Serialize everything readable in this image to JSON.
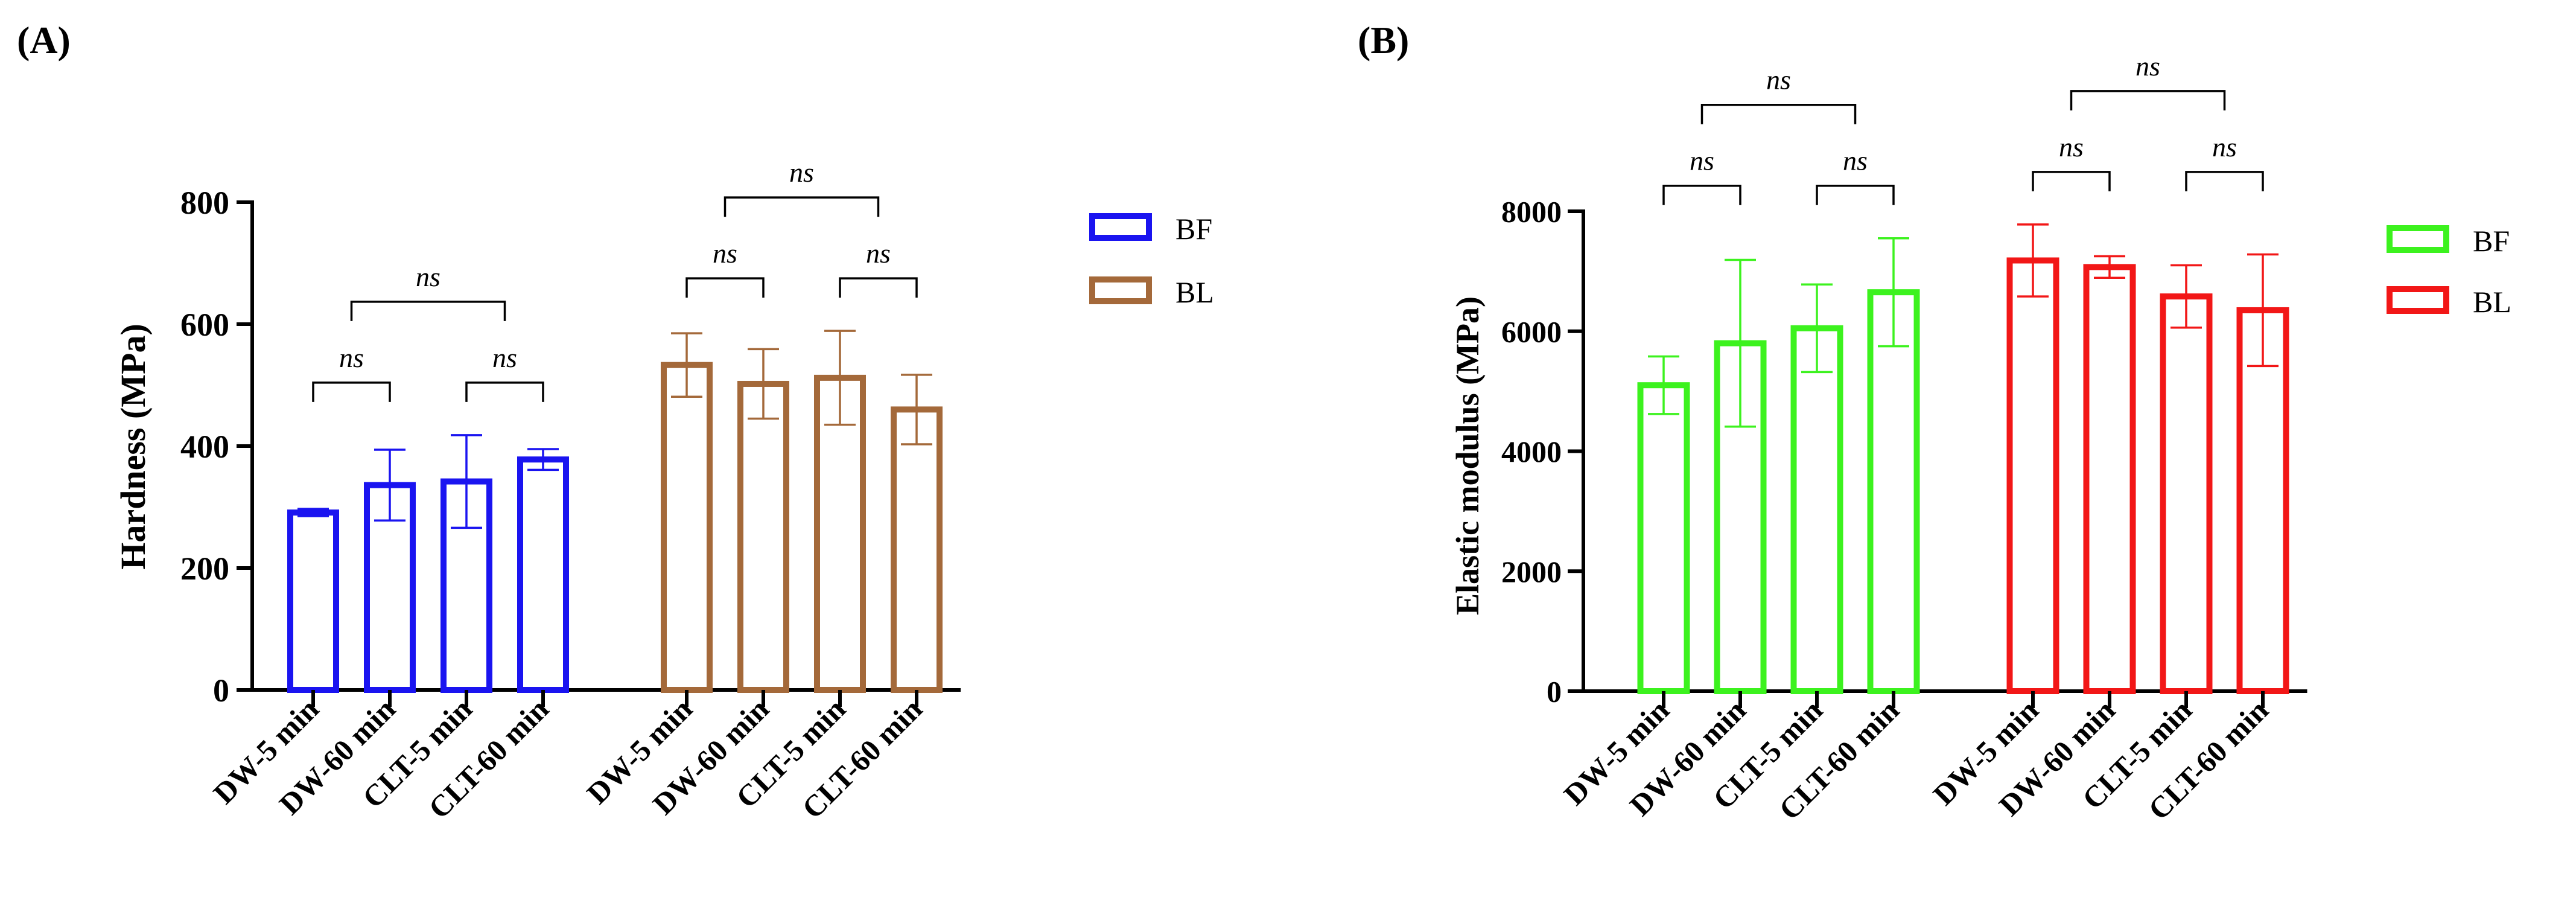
{
  "chart_data": [
    {
      "type": "bar",
      "panel_label": "(A)",
      "ylabel": "Hardness (MPa)",
      "xlabel": "",
      "ylim": [
        0,
        800
      ],
      "yticks": [
        "0",
        "200",
        "400",
        "600",
        "800"
      ],
      "categories": [
        "DW-5 min",
        "DW-60 min",
        "CLT-5 min",
        "CLT-60 min"
      ],
      "series": [
        {
          "name": "BF",
          "color": "#1a14f0",
          "values": [
            291,
            336,
            342,
            378
          ],
          "errors": [
            6,
            58,
            76,
            17
          ]
        },
        {
          "name": "BL",
          "color": "#a4693a",
          "values": [
            533,
            502,
            512,
            460
          ],
          "errors": [
            52,
            57,
            77,
            57
          ]
        }
      ],
      "significance": {
        "label": "ns",
        "pairs": [
          {
            "series": 0,
            "from": 0,
            "to": 1,
            "level": 1
          },
          {
            "series": 0,
            "from": 2,
            "to": 3,
            "level": 1
          },
          {
            "series": 0,
            "from": 0.5,
            "to": 2.5,
            "level": 2
          },
          {
            "series": 1,
            "from": 0,
            "to": 1,
            "level": 1
          },
          {
            "series": 1,
            "from": 2,
            "to": 3,
            "level": 1
          },
          {
            "series": 1,
            "from": 0.5,
            "to": 2.5,
            "level": 2
          }
        ]
      },
      "legend": {
        "position": "top-right",
        "entries": [
          "BF",
          "BL"
        ]
      }
    },
    {
      "type": "bar",
      "panel_label": "(B)",
      "ylabel": "Elastic modulus (MPa)",
      "xlabel": "",
      "ylim": [
        0,
        8000
      ],
      "yticks": [
        "0",
        "2000",
        "4000",
        "6000",
        "8000"
      ],
      "categories": [
        "DW-5 min",
        "DW-60 min",
        "CLT-5 min",
        "CLT-60 min"
      ],
      "series": [
        {
          "name": "BF",
          "color": "#3cf21e",
          "values": [
            5100,
            5800,
            6050,
            6650
          ],
          "errors": [
            480,
            1390,
            730,
            900
          ]
        },
        {
          "name": "BL",
          "color": "#f21717",
          "values": [
            7180,
            7070,
            6580,
            6350
          ],
          "errors": [
            600,
            180,
            520,
            930
          ]
        }
      ],
      "significance": {
        "label": "ns",
        "pairs": [
          {
            "series": 0,
            "from": 0,
            "to": 1,
            "level": 1
          },
          {
            "series": 0,
            "from": 2,
            "to": 3,
            "level": 1
          },
          {
            "series": 0,
            "from": 0.5,
            "to": 2.5,
            "level": 2
          },
          {
            "series": 1,
            "from": 0,
            "to": 1,
            "level": 1
          },
          {
            "series": 1,
            "from": 2,
            "to": 3,
            "level": 1
          },
          {
            "series": 1,
            "from": 0.5,
            "to": 2.5,
            "level": 2
          }
        ]
      },
      "legend": {
        "position": "top-right",
        "entries": [
          "BF",
          "BL"
        ]
      }
    }
  ]
}
